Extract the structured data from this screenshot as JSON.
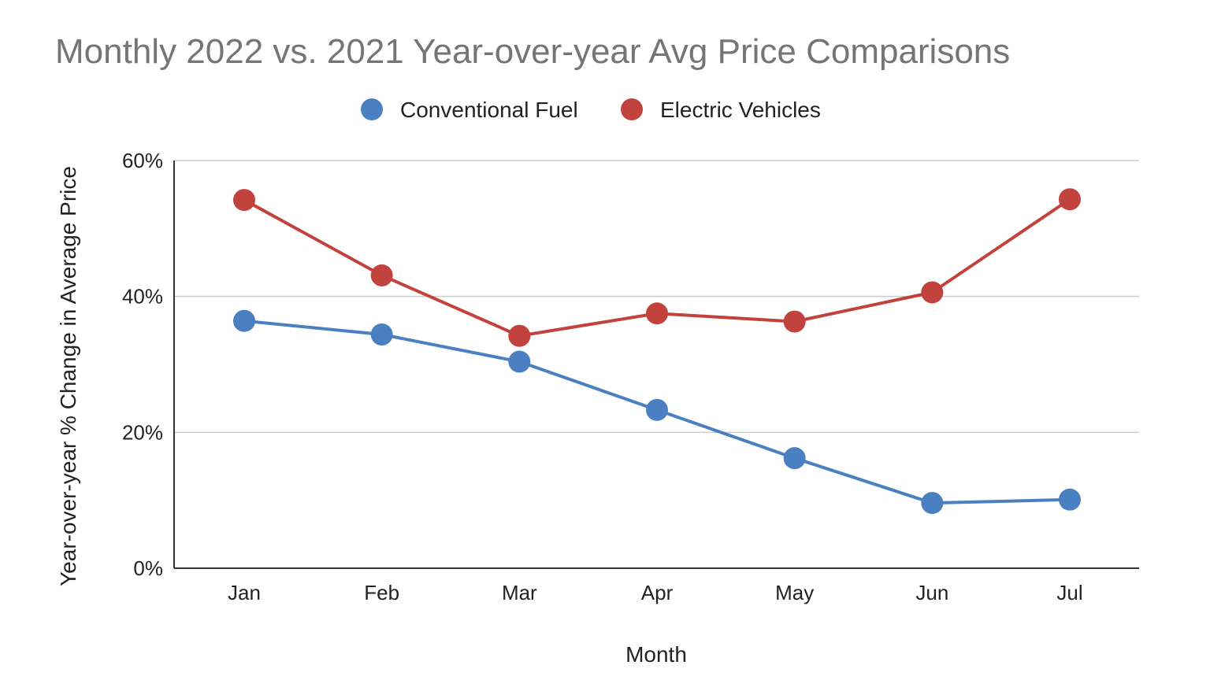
{
  "chart_data": {
    "type": "line",
    "title": "Monthly 2022 vs. 2021 Year-over-year Avg Price Comparisons",
    "xlabel": "Month",
    "ylabel": "Year-over-year % Change in Average Price",
    "categories": [
      "Jan",
      "Feb",
      "Mar",
      "Apr",
      "May",
      "Jun",
      "Jul"
    ],
    "ylim": [
      0,
      60
    ],
    "yticks": [
      0,
      20,
      40,
      60
    ],
    "ytick_labels": [
      "0%",
      "20%",
      "40%",
      "60%"
    ],
    "grid": true,
    "legend_position": "top",
    "markers": true,
    "series": [
      {
        "name": "Conventional Fuel",
        "color": "#4a7fc1",
        "values": [
          36.4,
          34.4,
          30.4,
          23.3,
          16.2,
          9.6,
          10.1
        ]
      },
      {
        "name": "Electric Vehicles",
        "color": "#c2423d",
        "values": [
          54.2,
          43.1,
          34.2,
          37.5,
          36.3,
          40.6,
          54.3
        ]
      }
    ]
  }
}
